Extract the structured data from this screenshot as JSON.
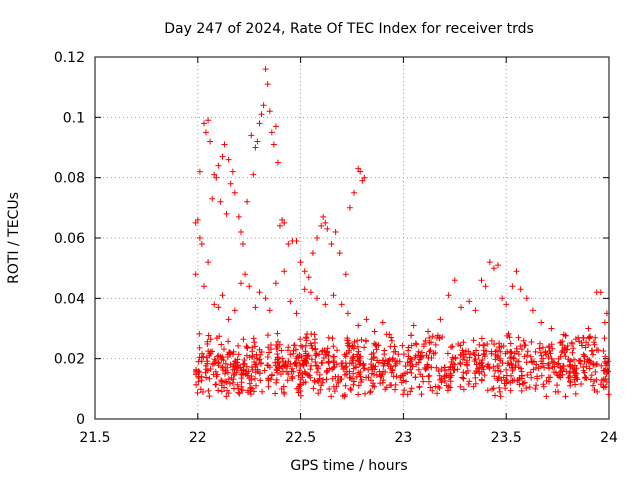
{
  "chart_data": {
    "type": "scatter",
    "title": "Day 247 of 2024, Rate Of TEC Index for receiver trds",
    "xlabel": "GPS time / hours",
    "ylabel": "ROTI / TECUs",
    "xlim": [
      21.5,
      24
    ],
    "ylim": [
      0,
      0.12
    ],
    "xticks": [
      21.5,
      22,
      22.5,
      23,
      23.5,
      24
    ],
    "xtick_labels": [
      "21.5",
      "22",
      "22.5",
      "23",
      "23.5",
      "24"
    ],
    "yticks": [
      0,
      0.02,
      0.04,
      0.06,
      0.08,
      0.1,
      0.12
    ],
    "ytick_labels": [
      "0",
      "0.02",
      "0.04",
      "0.06",
      "0.08",
      "0.1",
      "0.12"
    ],
    "grid": true,
    "marker": "+",
    "series": [
      {
        "name": "ROTI",
        "color": "#ff0000",
        "points": [
          [
            21.99,
            0.065
          ],
          [
            22.0,
            0.066
          ],
          [
            22.01,
            0.082
          ],
          [
            22.02,
            0.058
          ],
          [
            22.03,
            0.098
          ],
          [
            22.04,
            0.095
          ],
          [
            22.05,
            0.099
          ],
          [
            22.06,
            0.092
          ],
          [
            22.07,
            0.073
          ],
          [
            22.08,
            0.081
          ],
          [
            22.09,
            0.08
          ],
          [
            22.1,
            0.084
          ],
          [
            22.11,
            0.072
          ],
          [
            22.12,
            0.087
          ],
          [
            22.13,
            0.091
          ],
          [
            22.14,
            0.068
          ],
          [
            22.15,
            0.086
          ],
          [
            22.16,
            0.078
          ],
          [
            22.17,
            0.082
          ],
          [
            22.18,
            0.075
          ],
          [
            22.2,
            0.067
          ],
          [
            22.21,
            0.062
          ],
          [
            22.22,
            0.058
          ],
          [
            22.24,
            0.072
          ],
          [
            22.26,
            0.094
          ],
          [
            22.27,
            0.081
          ],
          [
            22.28,
            0.09
          ],
          [
            22.29,
            0.092
          ],
          [
            22.3,
            0.098
          ],
          [
            22.31,
            0.101
          ],
          [
            22.32,
            0.104
          ],
          [
            22.33,
            0.116
          ],
          [
            22.34,
            0.111
          ],
          [
            22.35,
            0.102
          ],
          [
            22.36,
            0.095
          ],
          [
            22.37,
            0.091
          ],
          [
            22.38,
            0.097
          ],
          [
            22.39,
            0.085
          ],
          [
            22.4,
            0.064
          ],
          [
            22.41,
            0.066
          ],
          [
            22.42,
            0.065
          ],
          [
            22.44,
            0.058
          ],
          [
            22.46,
            0.059
          ],
          [
            22.48,
            0.059
          ],
          [
            22.5,
            0.052
          ],
          [
            22.52,
            0.049
          ],
          [
            22.54,
            0.047
          ],
          [
            22.56,
            0.055
          ],
          [
            22.58,
            0.06
          ],
          [
            22.6,
            0.064
          ],
          [
            22.61,
            0.067
          ],
          [
            22.62,
            0.065
          ],
          [
            22.63,
            0.063
          ],
          [
            22.65,
            0.058
          ],
          [
            22.67,
            0.062
          ],
          [
            22.69,
            0.055
          ],
          [
            22.72,
            0.048
          ],
          [
            22.74,
            0.07
          ],
          [
            22.76,
            0.075
          ],
          [
            22.78,
            0.083
          ],
          [
            22.79,
            0.082
          ],
          [
            22.8,
            0.079
          ],
          [
            22.81,
            0.08
          ],
          [
            21.99,
            0.048
          ],
          [
            22.01,
            0.06
          ],
          [
            22.03,
            0.044
          ],
          [
            22.05,
            0.052
          ],
          [
            22.08,
            0.038
          ],
          [
            22.1,
            0.037
          ],
          [
            22.12,
            0.041
          ],
          [
            22.15,
            0.033
          ],
          [
            22.18,
            0.036
          ],
          [
            22.21,
            0.045
          ],
          [
            22.23,
            0.048
          ],
          [
            22.25,
            0.044
          ],
          [
            22.28,
            0.037
          ],
          [
            22.3,
            0.042
          ],
          [
            22.33,
            0.04
          ],
          [
            22.35,
            0.036
          ],
          [
            22.38,
            0.045
          ],
          [
            22.42,
            0.049
          ],
          [
            22.45,
            0.039
          ],
          [
            22.48,
            0.035
          ],
          [
            22.52,
            0.043
          ],
          [
            22.55,
            0.042
          ],
          [
            22.58,
            0.04
          ],
          [
            22.62,
            0.038
          ],
          [
            22.66,
            0.041
          ],
          [
            22.7,
            0.038
          ],
          [
            22.73,
            0.035
          ],
          [
            22.78,
            0.031
          ],
          [
            22.82,
            0.033
          ],
          [
            22.86,
            0.029
          ],
          [
            22.9,
            0.032
          ],
          [
            22.94,
            0.027
          ],
          [
            23.05,
            0.031
          ],
          [
            23.12,
            0.029
          ],
          [
            23.18,
            0.033
          ],
          [
            23.22,
            0.041
          ],
          [
            23.25,
            0.046
          ],
          [
            23.28,
            0.037
          ],
          [
            23.32,
            0.039
          ],
          [
            23.35,
            0.036
          ],
          [
            23.38,
            0.046
          ],
          [
            23.4,
            0.044
          ],
          [
            23.42,
            0.052
          ],
          [
            23.44,
            0.05
          ],
          [
            23.46,
            0.051
          ],
          [
            23.48,
            0.04
          ],
          [
            23.5,
            0.038
          ],
          [
            23.53,
            0.044
          ],
          [
            23.55,
            0.049
          ],
          [
            23.57,
            0.043
          ],
          [
            23.6,
            0.04
          ],
          [
            23.63,
            0.036
          ],
          [
            23.67,
            0.032
          ],
          [
            23.72,
            0.03
          ],
          [
            23.78,
            0.028
          ],
          [
            23.85,
            0.027
          ],
          [
            23.9,
            0.03
          ],
          [
            23.94,
            0.042
          ],
          [
            23.96,
            0.042
          ],
          [
            23.98,
            0.032
          ],
          [
            23.99,
            0.035
          ]
        ],
        "band": {
          "x_range": [
            21.99,
            24.0
          ],
          "center_low": 0.0125,
          "center_high": 0.023,
          "count": 1100,
          "seed": 247
        }
      }
    ]
  }
}
